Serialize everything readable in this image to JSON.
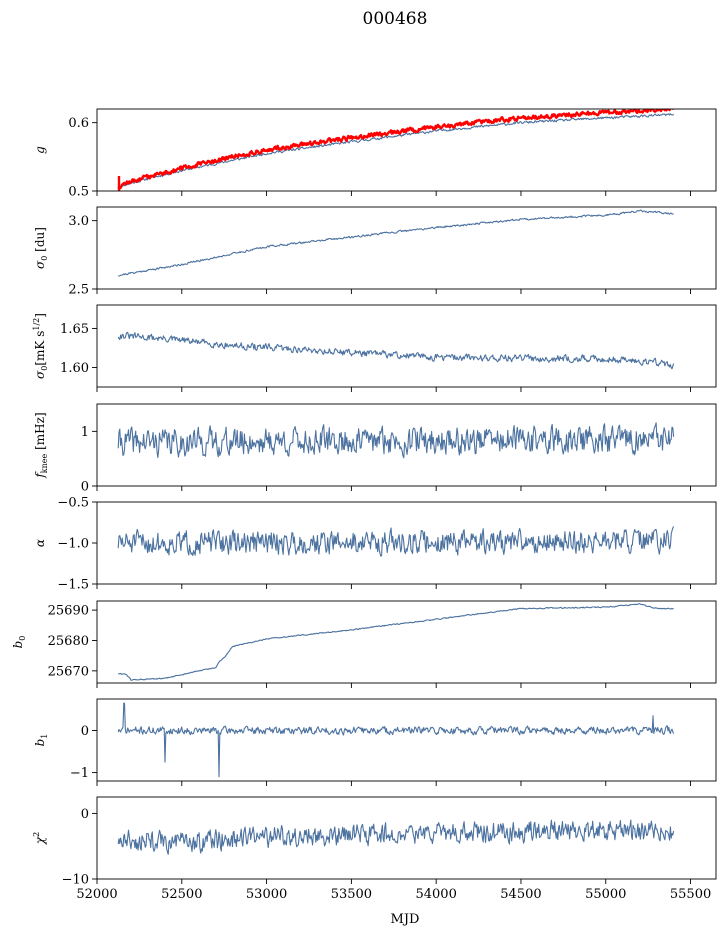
{
  "figure": {
    "title": "000468",
    "xlabel": "MJD",
    "series_color": "#4c72a0",
    "overlay_color": "#ff0000"
  },
  "chart_data": [
    {
      "id": "g",
      "type": "line",
      "ylabel": "g",
      "xlim": [
        52000,
        55650
      ],
      "ylim": [
        0.5,
        0.62
      ],
      "yticks": [
        0.5,
        0.6
      ],
      "ytick_labels": [
        "0.5",
        "0.6"
      ],
      "x_range": [
        52125,
        55400
      ],
      "series": [
        {
          "name": "g",
          "anchors": [
            [
              52125,
              0.502
            ],
            [
              52150,
              0.508
            ],
            [
              52300,
              0.518
            ],
            [
              52500,
              0.53
            ],
            [
              52800,
              0.545
            ],
            [
              53000,
              0.555
            ],
            [
              53500,
              0.572
            ],
            [
              54000,
              0.588
            ],
            [
              54500,
              0.6
            ],
            [
              55000,
              0.607
            ],
            [
              55400,
              0.612
            ]
          ],
          "noise": 0.001,
          "seed": 11
        },
        {
          "name": "g_red",
          "color": "#ff0000",
          "width": 2.4,
          "anchors": [
            [
              52125,
              0.505
            ],
            [
              52150,
              0.51
            ],
            [
              52300,
              0.521
            ],
            [
              52500,
              0.533
            ],
            [
              52800,
              0.55
            ],
            [
              53000,
              0.56
            ],
            [
              53500,
              0.578
            ],
            [
              54000,
              0.594
            ],
            [
              54500,
              0.607
            ],
            [
              55000,
              0.615
            ],
            [
              55400,
              0.62
            ]
          ],
          "noise": 0.0018,
          "seed": 12,
          "spike": [
            52130,
            0.5,
            0.522
          ]
        }
      ]
    },
    {
      "id": "sigma0-du",
      "type": "line",
      "ylabel": "σ0 [du]",
      "ylabel_html": "σ<sub>0</sub> [du]",
      "xlim": [
        52000,
        55650
      ],
      "ylim": [
        2.5,
        3.1
      ],
      "yticks": [
        2.5,
        3.0
      ],
      "ytick_labels": [
        "2.5",
        "3.0"
      ],
      "x_range": [
        52125,
        55400
      ],
      "series": [
        {
          "name": "sigma0_du",
          "anchors": [
            [
              52125,
              2.6
            ],
            [
              52500,
              2.68
            ],
            [
              53000,
              2.81
            ],
            [
              53500,
              2.88
            ],
            [
              54000,
              2.95
            ],
            [
              54500,
              3.01
            ],
            [
              55000,
              3.04
            ],
            [
              55200,
              3.07
            ],
            [
              55400,
              3.05
            ]
          ],
          "noise": 0.004,
          "seed": 21
        }
      ]
    },
    {
      "id": "sigma0-mk",
      "type": "line",
      "ylabel": "σ0[mK s^1/2]",
      "xlim": [
        52000,
        55650
      ],
      "ylim": [
        1.575,
        1.68
      ],
      "yticks": [
        1.6,
        1.65
      ],
      "ytick_labels": [
        "1.60",
        "1.65"
      ],
      "x_range": [
        52125,
        55400
      ],
      "series": [
        {
          "name": "sigma0_mk",
          "anchors": [
            [
              52125,
              1.641
            ],
            [
              52400,
              1.637
            ],
            [
              52800,
              1.628
            ],
            [
              53200,
              1.623
            ],
            [
              53600,
              1.618
            ],
            [
              54000,
              1.613
            ],
            [
              54500,
              1.612
            ],
            [
              55000,
              1.611
            ],
            [
              55300,
              1.607
            ],
            [
              55400,
              1.602
            ]
          ],
          "noise": 0.0025,
          "seed": 31
        }
      ]
    },
    {
      "id": "fknee",
      "type": "line",
      "ylabel": "fknee [mHz]",
      "xlim": [
        52000,
        55650
      ],
      "ylim": [
        0,
        1.5
      ],
      "yticks": [
        0,
        1
      ],
      "ytick_labels": [
        "0",
        "1"
      ],
      "x_range": [
        52125,
        55400
      ],
      "series": [
        {
          "name": "fknee",
          "anchors": [
            [
              52125,
              0.8
            ],
            [
              55400,
              0.85
            ]
          ],
          "noise": 0.14,
          "seed": 41
        }
      ]
    },
    {
      "id": "alpha",
      "type": "line",
      "ylabel": "α",
      "xlim": [
        52000,
        55650
      ],
      "ylim": [
        -1.5,
        -0.5
      ],
      "yticks": [
        -1.5,
        -1.0,
        -0.5
      ],
      "ytick_labels": [
        "−1.5",
        "−1.0",
        "−0.5"
      ],
      "x_range": [
        52125,
        55400
      ],
      "series": [
        {
          "name": "alpha",
          "anchors": [
            [
              52125,
              -1.0
            ],
            [
              55400,
              -0.98
            ]
          ],
          "noise": 0.08,
          "seed": 51
        }
      ]
    },
    {
      "id": "b0",
      "type": "line",
      "ylabel": "b0",
      "xlim": [
        52000,
        55650
      ],
      "ylim": [
        25666,
        25693
      ],
      "yticks": [
        25670,
        25680,
        25690
      ],
      "ytick_labels": [
        "25670",
        "25680",
        "25690"
      ],
      "x_range": [
        52125,
        55400
      ],
      "series": [
        {
          "name": "b0",
          "anchors": [
            [
              52125,
              25669
            ],
            [
              52170,
              25669
            ],
            [
              52200,
              25667
            ],
            [
              52400,
              25667.5
            ],
            [
              52600,
              25670
            ],
            [
              52700,
              25671
            ],
            [
              52720,
              25673
            ],
            [
              52760,
              25675
            ],
            [
              52800,
              25678
            ],
            [
              53000,
              25680.5
            ],
            [
              53500,
              25683.5
            ],
            [
              54000,
              25687
            ],
            [
              54500,
              25690.5
            ],
            [
              55000,
              25691
            ],
            [
              55200,
              25692
            ],
            [
              55300,
              25690.5
            ],
            [
              55400,
              25690.5
            ]
          ],
          "noise": 0.1,
          "seed": 61
        }
      ]
    },
    {
      "id": "b1",
      "type": "line",
      "ylabel": "b1",
      "xlim": [
        52000,
        55650
      ],
      "ylim": [
        -1.2,
        0.75
      ],
      "yticks": [
        -1,
        0
      ],
      "ytick_labels": [
        "−1",
        "0"
      ],
      "x_range": [
        52125,
        55400
      ],
      "series": [
        {
          "name": "b1",
          "anchors": [
            [
              52125,
              0.0
            ],
            [
              55400,
              0.0
            ]
          ],
          "noise": 0.05,
          "seed": 71,
          "spikes": [
            [
              52160,
              0.65
            ],
            [
              52400,
              -0.75
            ],
            [
              52720,
              -1.1
            ],
            [
              55280,
              0.35
            ]
          ]
        }
      ]
    },
    {
      "id": "chi2",
      "type": "line",
      "ylabel": "χ²",
      "xlim": [
        52000,
        55650
      ],
      "ylim": [
        -10,
        2.5
      ],
      "yticks": [
        -10,
        0
      ],
      "ytick_labels": [
        "−10",
        "0"
      ],
      "x_range": [
        52125,
        55400
      ],
      "series": [
        {
          "name": "chi2",
          "anchors": [
            [
              52125,
              -4.0
            ],
            [
              52500,
              -4.5
            ],
            [
              53000,
              -3.5
            ],
            [
              54000,
              -3.0
            ],
            [
              55000,
              -2.5
            ],
            [
              55400,
              -3.0
            ]
          ],
          "noise": 0.9,
          "seed": 81
        }
      ]
    }
  ],
  "x_axis": {
    "ticks": [
      52000,
      52500,
      53000,
      53500,
      54000,
      54500,
      55000,
      55500
    ],
    "tick_labels": [
      "52000",
      "52500",
      "53000",
      "53500",
      "54000",
      "54500",
      "55000",
      "55500"
    ]
  }
}
